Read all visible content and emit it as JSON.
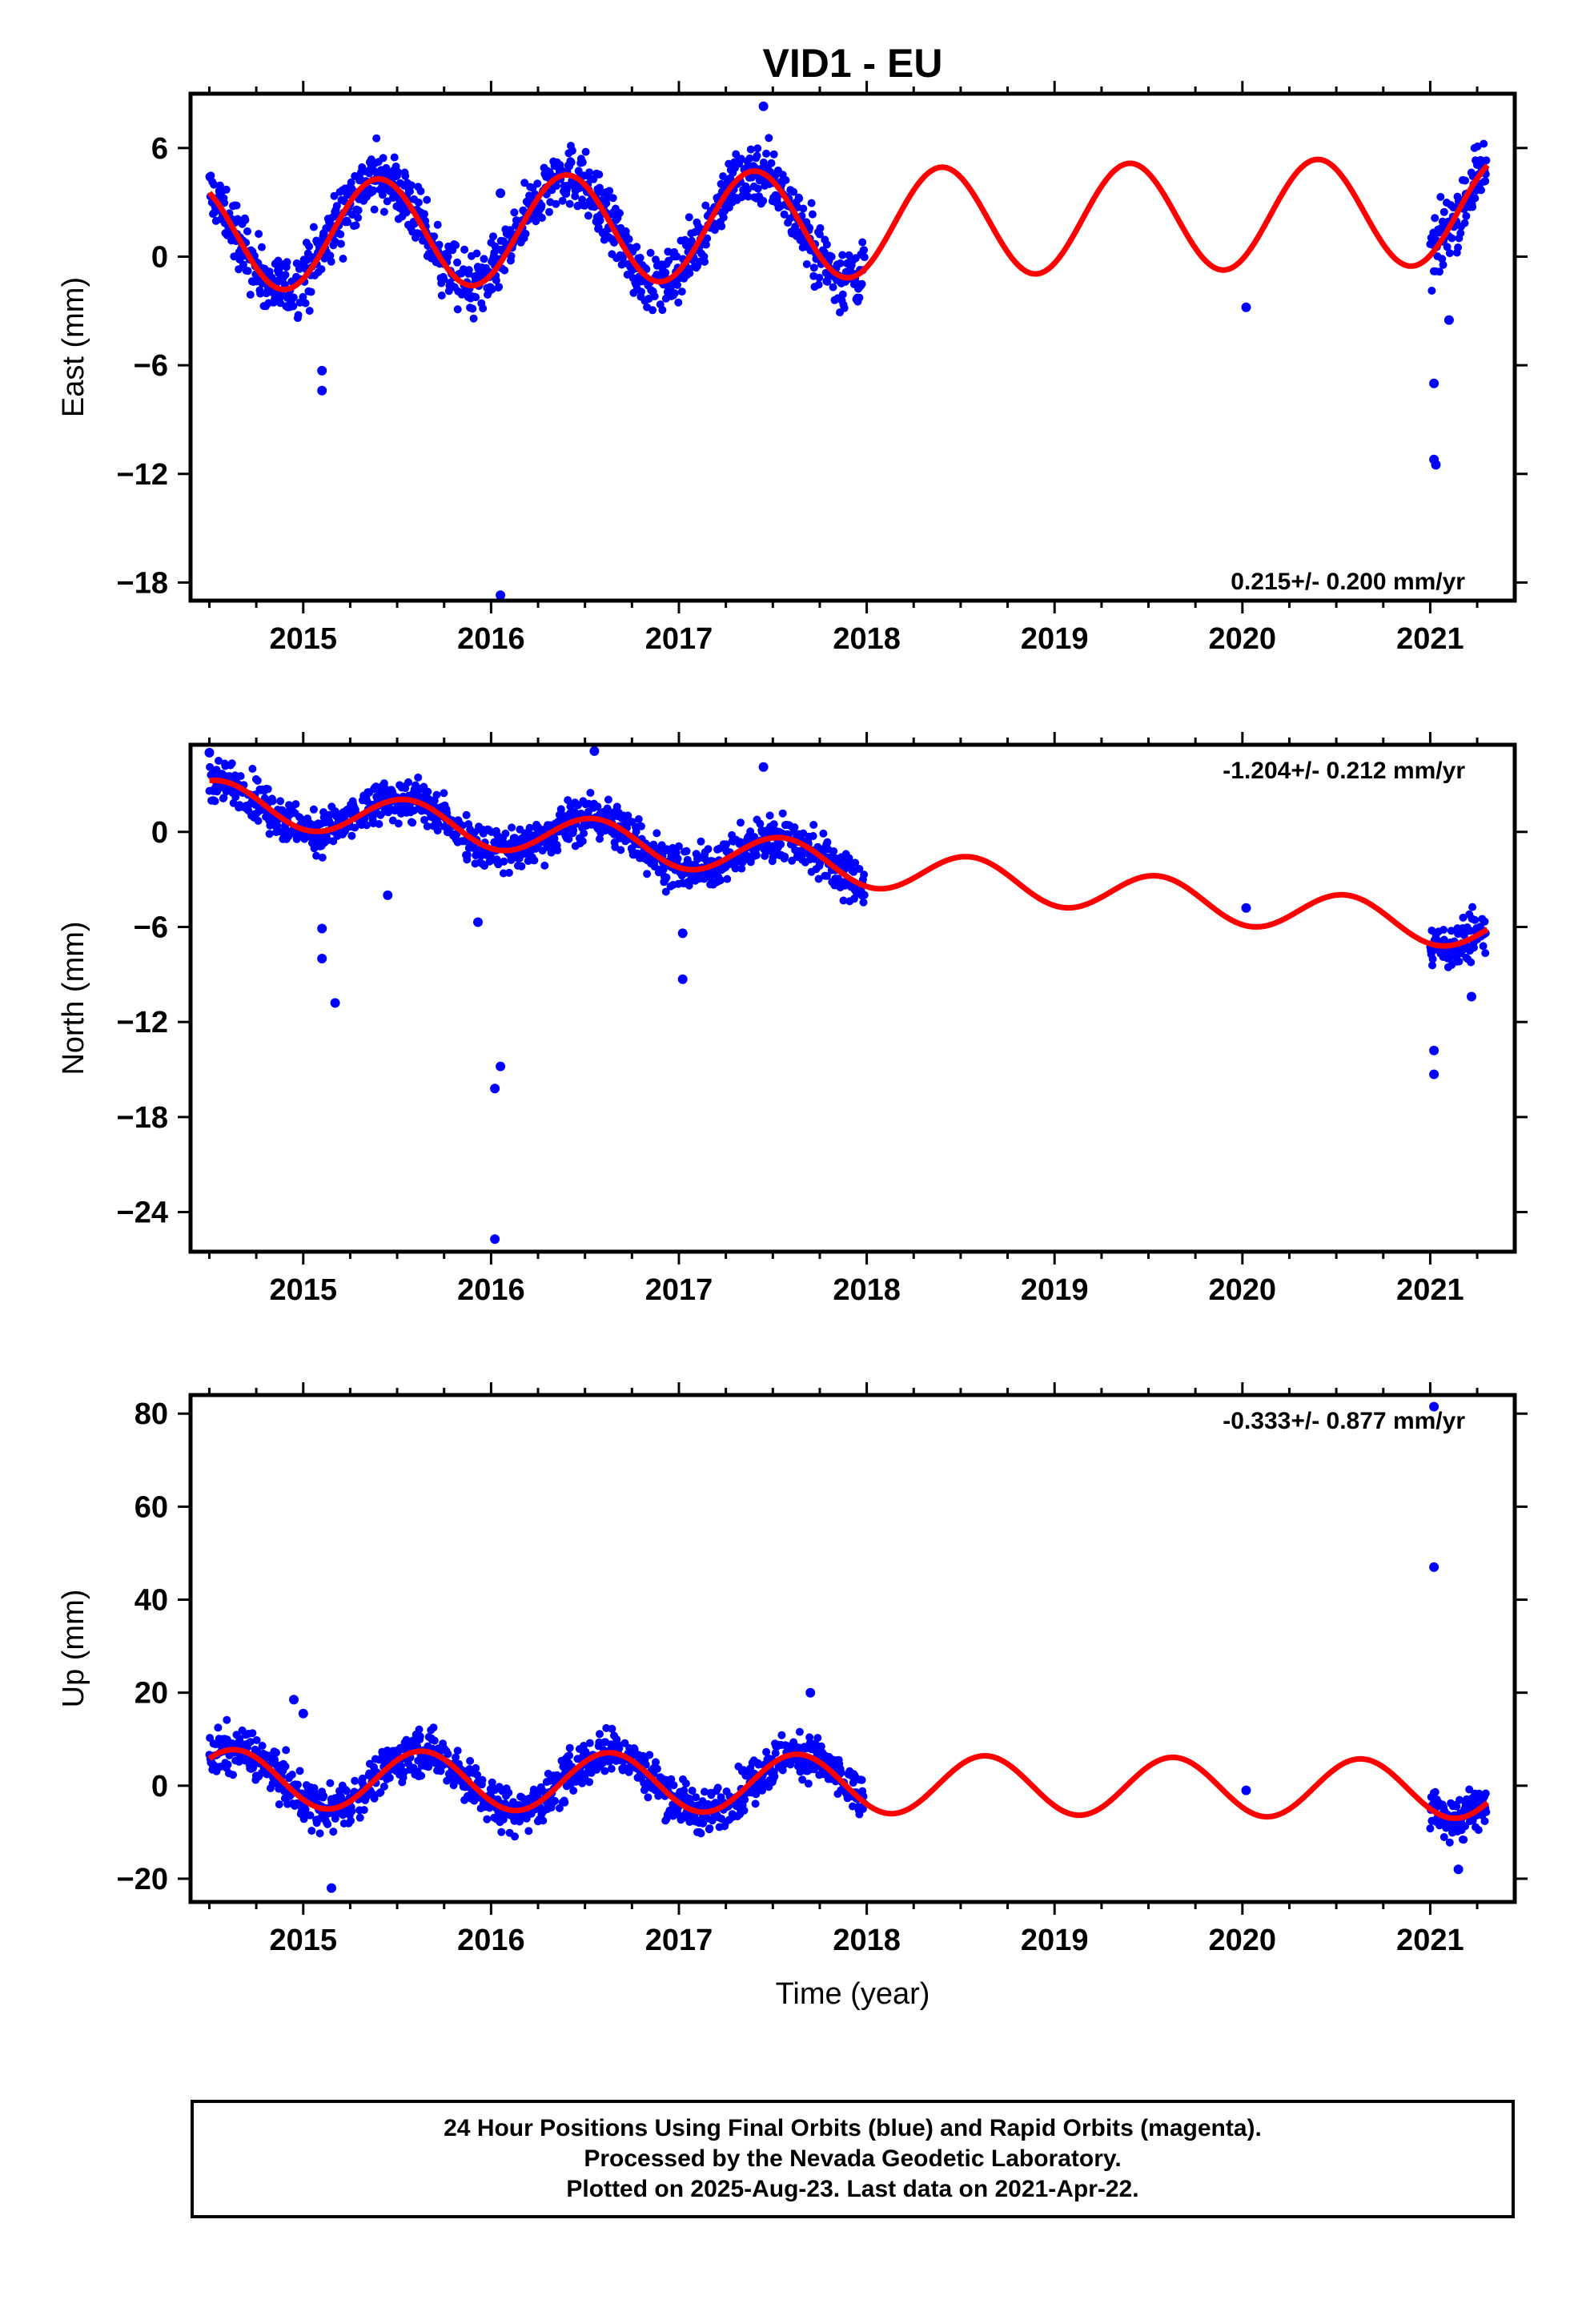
{
  "chart_data": {
    "title": "VID1 - EU",
    "xlabel": "Time (year)",
    "x_tick_labels": [
      "2015",
      "2016",
      "2017",
      "2018",
      "2019",
      "2020",
      "2021"
    ],
    "xlim": [
      2014.4,
      2021.45
    ],
    "type": "scatter",
    "colors": {
      "points": "#0000ff",
      "model": "#ff0000"
    },
    "panels": [
      {
        "ylabel": "East (mm)",
        "ylim": [
          -19,
          9
        ],
        "yticks": [
          6,
          0,
          -6,
          -12,
          -18
        ],
        "y_tick_labels": [
          "6",
          "0",
          "−6",
          "−12",
          "−18"
        ],
        "rate_text": "0.215+/- 0.200 mm/yr",
        "rate_position": "bottom-right",
        "model": {
          "offset": 1.1,
          "rate": 0.215,
          "amp": 3.0,
          "phase": 0.15,
          "data_start": 2014.5
        },
        "data_segments": [
          {
            "start": 2014.5,
            "end": 2017.99
          },
          {
            "start": 2021.0,
            "end": 2021.3
          }
        ],
        "noise": 1.2,
        "outliers": [
          {
            "x": 2015.1,
            "y": -6.3
          },
          {
            "x": 2015.1,
            "y": -7.4
          },
          {
            "x": 2016.05,
            "y": -18.7
          },
          {
            "x": 2016.05,
            "y": 3.5
          },
          {
            "x": 2017.45,
            "y": 8.3
          },
          {
            "x": 2020.02,
            "y": -2.8
          },
          {
            "x": 2021.02,
            "y": -7.0
          },
          {
            "x": 2021.02,
            "y": -11.2
          },
          {
            "x": 2021.03,
            "y": -11.5
          },
          {
            "x": 2021.1,
            "y": -3.5
          }
        ]
      },
      {
        "ylabel": "North (mm)",
        "ylim": [
          -26.5,
          5.5
        ],
        "yticks": [
          0,
          -6,
          -12,
          -18,
          -24
        ],
        "y_tick_labels": [
          "0",
          "−6",
          "−12",
          "−18",
          "−24"
        ],
        "rate_text": "-1.204+/- 0.212 mm/yr",
        "rate_position": "top-right",
        "model": {
          "offset": 2.0,
          "rate": -1.204,
          "amp": 1.3,
          "phase": 0.3,
          "data_start": 2014.5
        },
        "data_segments": [
          {
            "start": 2014.5,
            "end": 2017.99
          },
          {
            "start": 2021.0,
            "end": 2021.3
          }
        ],
        "noise": 1.0,
        "outliers": [
          {
            "x": 2015.1,
            "y": -6.1
          },
          {
            "x": 2015.1,
            "y": -8.0
          },
          {
            "x": 2015.17,
            "y": -10.8
          },
          {
            "x": 2015.45,
            "y": -4.0
          },
          {
            "x": 2015.93,
            "y": -5.7
          },
          {
            "x": 2016.02,
            "y": -16.2
          },
          {
            "x": 2016.05,
            "y": -14.8
          },
          {
            "x": 2016.02,
            "y": -25.7
          },
          {
            "x": 2017.02,
            "y": -6.4
          },
          {
            "x": 2017.02,
            "y": -9.3
          },
          {
            "x": 2017.45,
            "y": 4.1
          },
          {
            "x": 2016.55,
            "y": 5.1
          },
          {
            "x": 2020.02,
            "y": -4.8
          },
          {
            "x": 2021.02,
            "y": -13.8
          },
          {
            "x": 2021.02,
            "y": -15.3
          },
          {
            "x": 2021.22,
            "y": -10.4
          },
          {
            "x": 2014.5,
            "y": 5.0
          }
        ]
      },
      {
        "ylabel": "Up (mm)",
        "ylim": [
          -25,
          84
        ],
        "yticks": [
          80,
          60,
          40,
          20,
          0,
          -20
        ],
        "y_tick_labels": [
          "80",
          "60",
          "40",
          "20",
          "0",
          "−20"
        ],
        "rate_text": "-0.333+/- 0.877 mm/yr",
        "rate_position": "top-right",
        "model": {
          "offset": 1.5,
          "rate": -0.333,
          "amp": 6.3,
          "phase": 0.38,
          "data_start": 2014.5
        },
        "data_segments": [
          {
            "start": 2014.5,
            "end": 2017.99
          },
          {
            "start": 2021.0,
            "end": 2021.3
          }
        ],
        "noise": 3.5,
        "outliers": [
          {
            "x": 2014.95,
            "y": 18.5
          },
          {
            "x": 2015.0,
            "y": 15.5
          },
          {
            "x": 2015.15,
            "y": -22.0
          },
          {
            "x": 2017.7,
            "y": 20.0
          },
          {
            "x": 2020.02,
            "y": -1.0
          },
          {
            "x": 2021.02,
            "y": 47.0
          },
          {
            "x": 2021.02,
            "y": 81.5
          },
          {
            "x": 2021.15,
            "y": -18.0
          }
        ]
      }
    ]
  },
  "footer": {
    "line1": "24 Hour Positions Using Final Orbits (blue) and Rapid Orbits (magenta).",
    "line2": "Processed by the Nevada Geodetic Laboratory.",
    "line3": "Plotted on 2025-Aug-23. Last data on 2021-Apr-22."
  }
}
